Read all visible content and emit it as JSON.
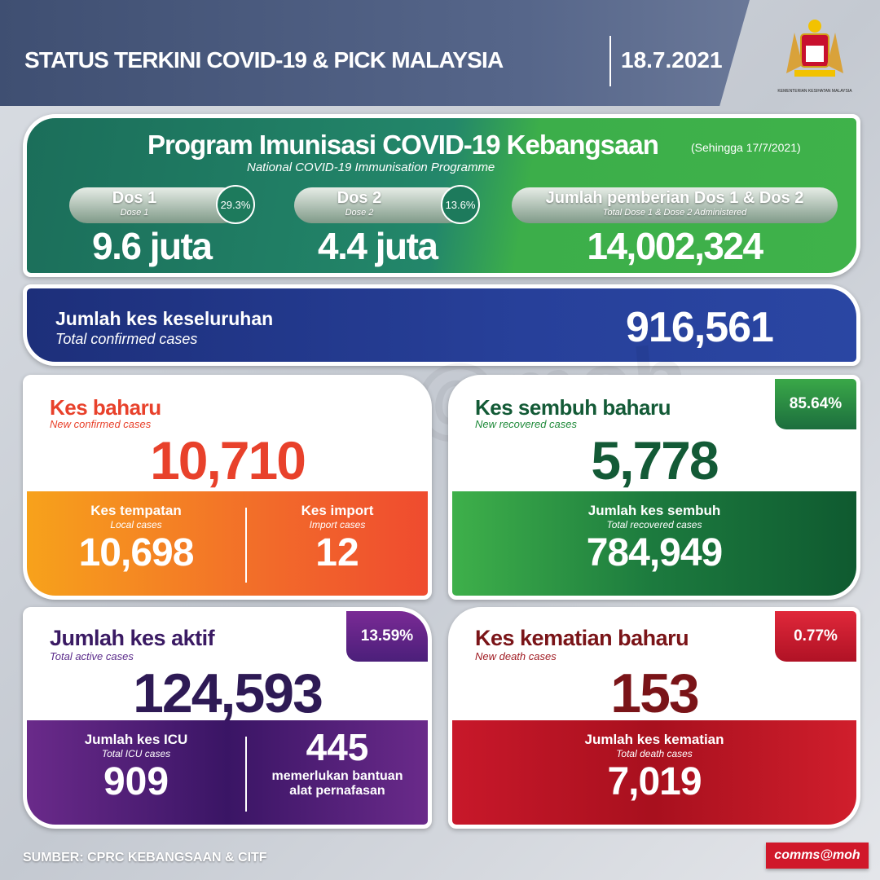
{
  "header": {
    "title": "STATUS TERKINI COVID-19 & PICK MALAYSIA",
    "date": "18.7.2021",
    "logo_text": "KEMENTERIAN KESIHATAN MALAYSIA"
  },
  "immunisation": {
    "title": "Program Imunisasi COVID-19 Kebangsaan",
    "as_of": "(Sehingga 17/7/2021)",
    "subtitle": "National COVID-19 Immunisation Programme",
    "dose1": {
      "label": "Dos 1",
      "sub": "Dose 1",
      "percent": "29.3%",
      "value": "9.6 juta"
    },
    "dose2": {
      "label": "Dos 2",
      "sub": "Dose 2",
      "percent": "13.6%",
      "value": "4.4 juta"
    },
    "total": {
      "label": "Jumlah pemberian Dos 1 & Dos 2",
      "sub": "Total Dose 1 & Dose 2 Administered",
      "value": "14,002,324"
    }
  },
  "total_cases": {
    "label": "Jumlah kes keseluruhan",
    "sub": "Total confirmed cases",
    "value": "916,561"
  },
  "new_cases": {
    "label": "Kes baharu",
    "sub": "New confirmed cases",
    "value": "10,710",
    "local": {
      "label": "Kes tempatan",
      "sub": "Local cases",
      "value": "10,698"
    },
    "import": {
      "label": "Kes import",
      "sub": "Import cases",
      "value": "12"
    }
  },
  "recovered": {
    "label": "Kes sembuh baharu",
    "sub": "New recovered cases",
    "value": "5,778",
    "percent": "85.64%",
    "total": {
      "label": "Jumlah kes sembuh",
      "sub": "Total recovered cases",
      "value": "784,949"
    }
  },
  "active": {
    "label": "Jumlah kes aktif",
    "sub": "Total active cases",
    "value": "124,593",
    "percent": "13.59%",
    "icu": {
      "label": "Jumlah kes ICU",
      "sub": "Total ICU cases",
      "value": "909"
    },
    "ventilator": {
      "value": "445",
      "label1": "memerlukan bantuan",
      "label2": "alat pernafasan"
    }
  },
  "deaths": {
    "label": "Kes kematian baharu",
    "sub": "New death cases",
    "value": "153",
    "percent": "0.77%",
    "total": {
      "label": "Jumlah kes kematian",
      "sub": "Total death cases",
      "value": "7,019"
    }
  },
  "footer": {
    "source": "SUMBER: CPRC KEBANGSAAN & CITF",
    "brand": "comms@moh"
  },
  "watermark": "comms@moh",
  "colors": {
    "green": "#23876a",
    "blue": "#27409a",
    "orange": "#f26b2a",
    "red_text": "#e8412b",
    "dark_green": "#135a36",
    "purple": "#4b1f7a",
    "dark_red": "#7a1418",
    "red": "#c8182a"
  }
}
